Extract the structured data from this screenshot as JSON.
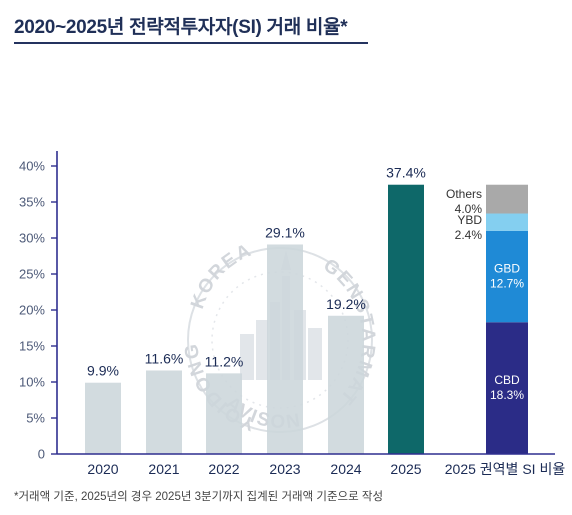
{
  "title": "2020~2025년 전략적투자자(SI) 거래 비율*",
  "footnote": "*거래액 기준, 2025년의 경우 2025년 3분기까지 집계된 거래액 기준으로 작성",
  "watermark": {
    "text_top": "KOREA",
    "text_left": "YOIDONG",
    "text_bottom": "AVISON",
    "text_right": "GENSTARMATE"
  },
  "colors": {
    "bar": "#ccd6db",
    "bar_highlight": "#0e6869",
    "axis": "#2f2f8f",
    "CBD": "#2b2c87",
    "GBD": "#1f8ad6",
    "YBD": "#84cff0",
    "Others": "#a9a9a9"
  },
  "chart_data": [
    {
      "type": "bar",
      "title": "",
      "categories": [
        "2020",
        "2021",
        "2022",
        "2023",
        "2024",
        "2025"
      ],
      "values": [
        9.9,
        11.6,
        11.2,
        29.1,
        19.2,
        37.4
      ],
      "labels": [
        "9.9%",
        "11.6%",
        "11.2%",
        "29.1%",
        "19.2%",
        "37.4%"
      ],
      "yticks": [
        "0",
        "5%",
        "10%",
        "15%",
        "20%",
        "25%",
        "30%",
        "35%",
        "40%"
      ],
      "ylim": [
        0,
        40
      ],
      "grid": false,
      "highlight": "2025"
    },
    {
      "type": "bar",
      "stacked": true,
      "category": "2025 권역별 SI 비율",
      "series": [
        {
          "name": "CBD",
          "value": 18.3,
          "label": "18.3%"
        },
        {
          "name": "GBD",
          "value": 12.7,
          "label": "12.7%"
        },
        {
          "name": "YBD",
          "value": 2.4,
          "label": "2.4%"
        },
        {
          "name": "Others",
          "value": 4.0,
          "label": "4.0%"
        }
      ]
    }
  ]
}
